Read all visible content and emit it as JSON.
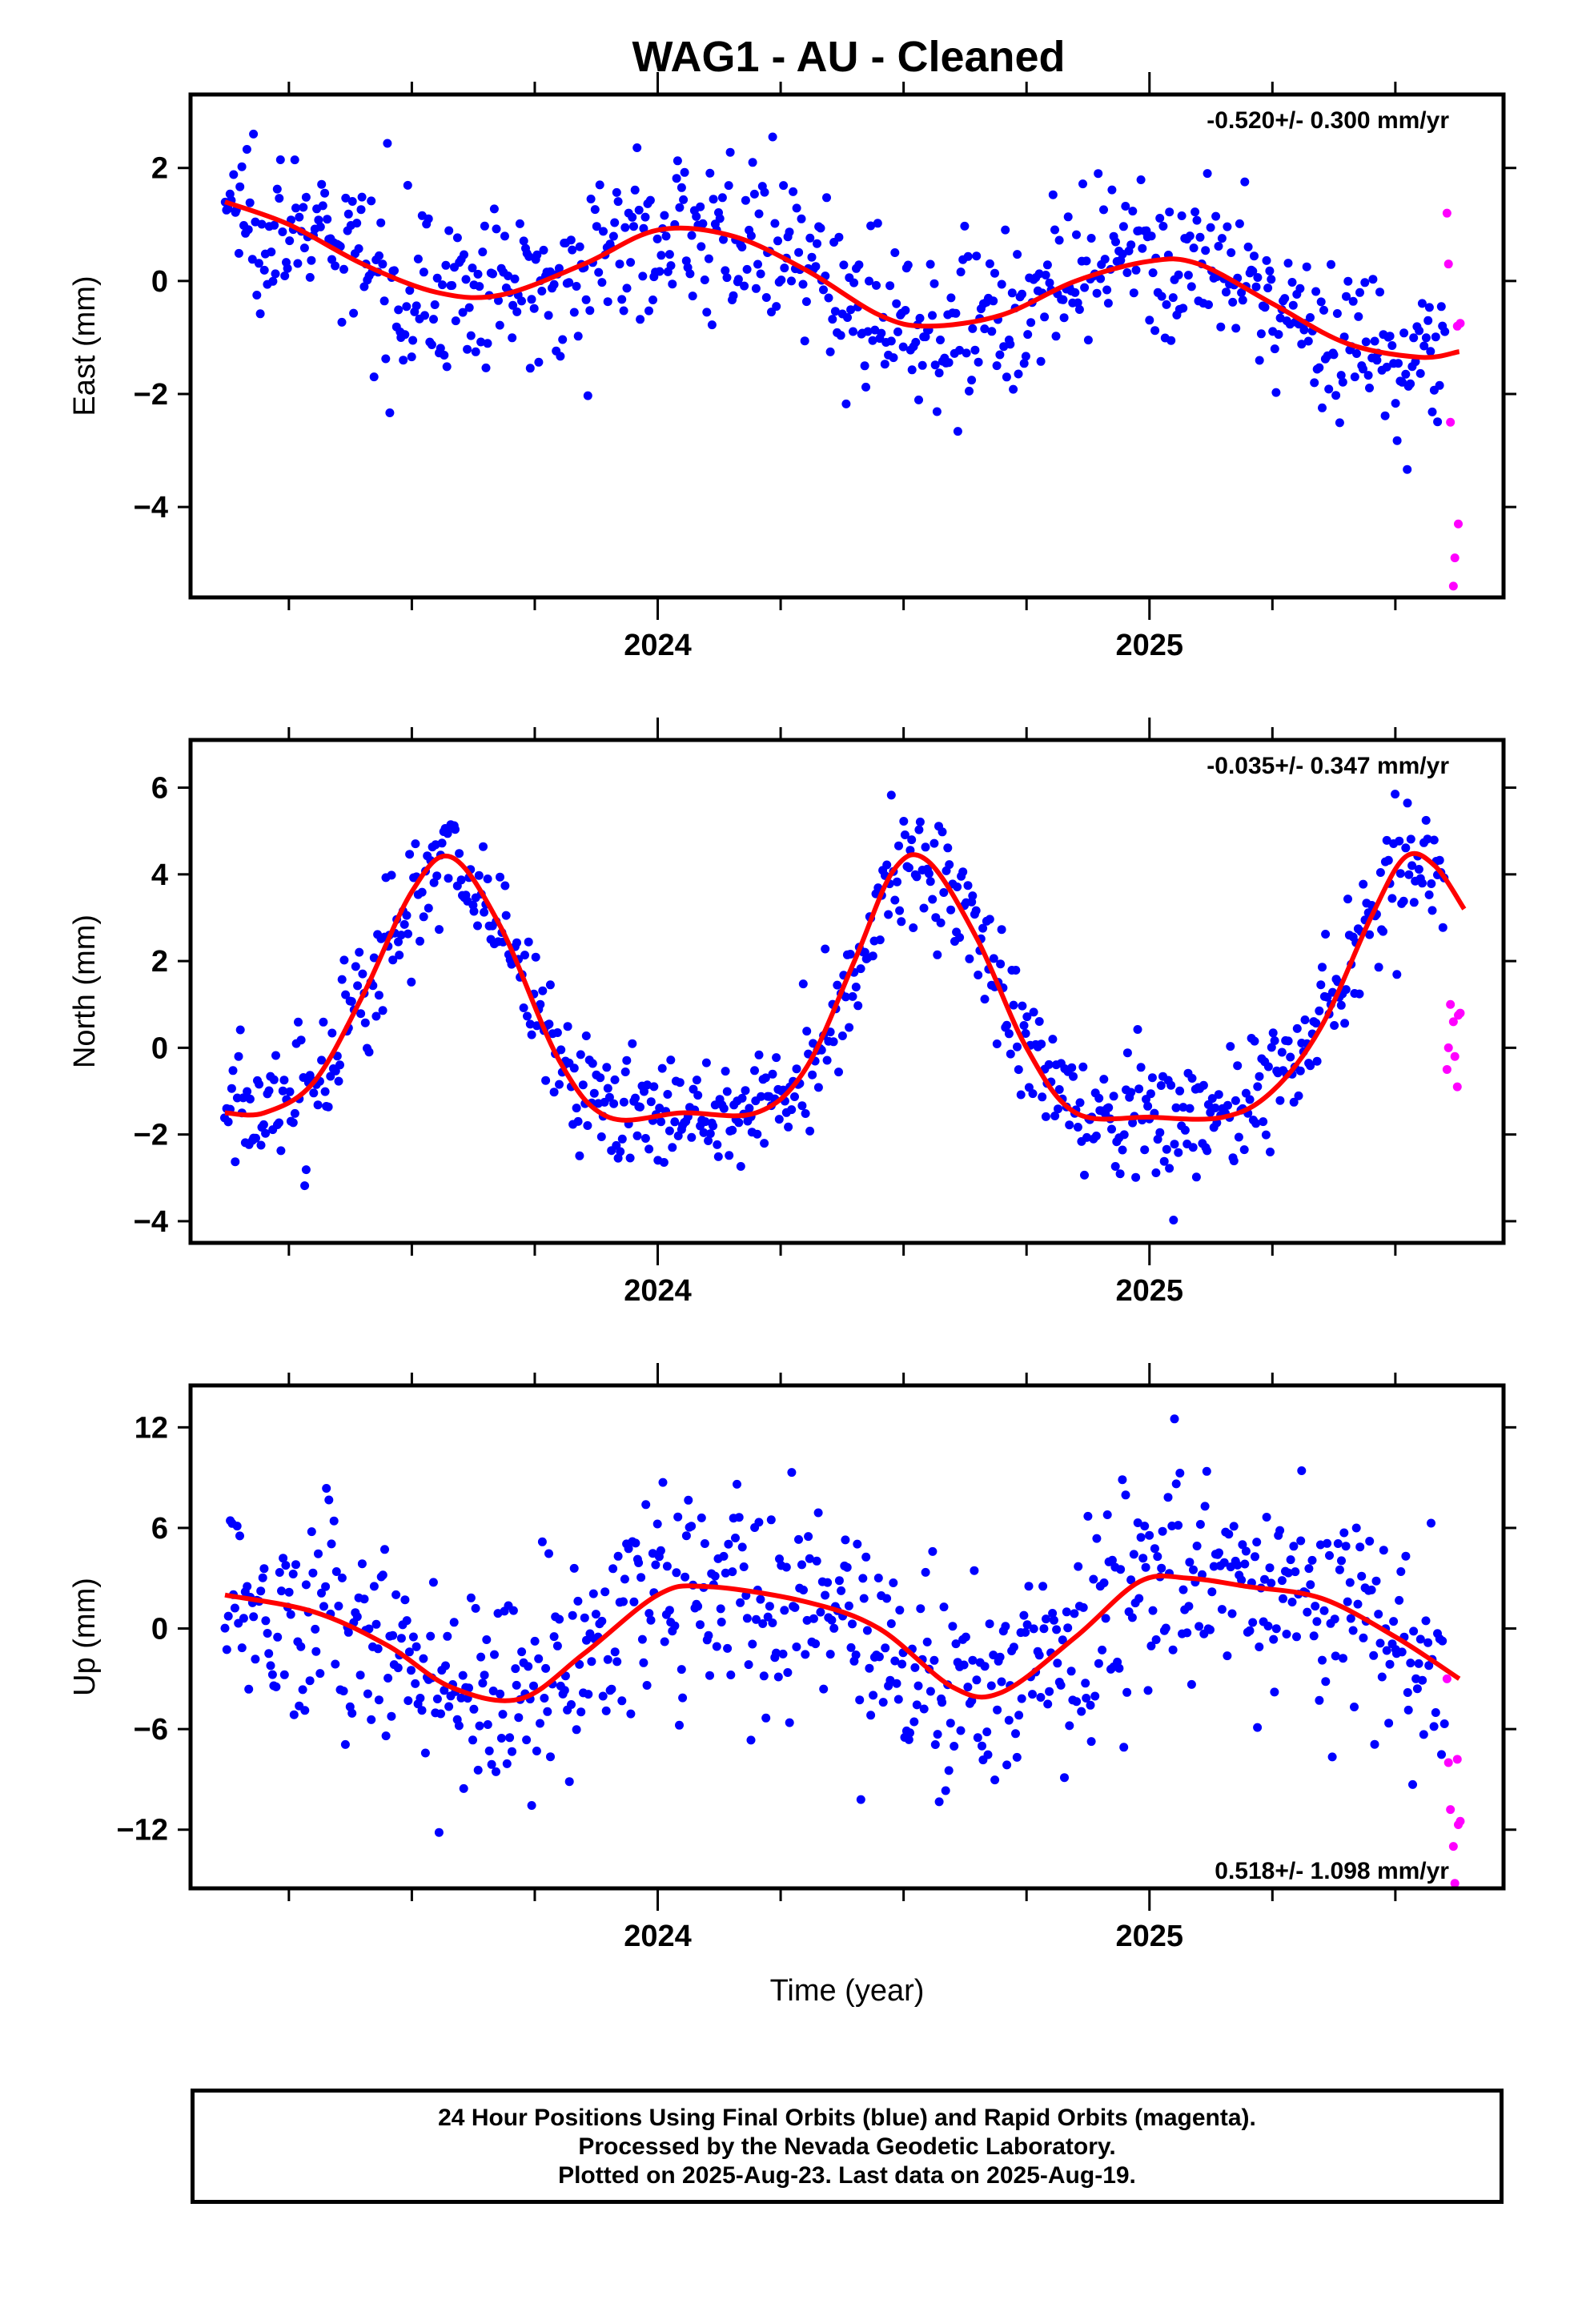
{
  "title": "WAG1  - AU - Cleaned",
  "colors": {
    "final": "#0000ff",
    "rapid": "#ff00ff",
    "model": "#ff0000"
  },
  "footer": {
    "line1": "24 Hour Positions Using Final Orbits (blue) and Rapid Orbits (magenta).",
    "line2": "Processed by the Nevada Geodetic Laboratory.",
    "line3": "Plotted on 2025-Aug-23. Last data on 2025-Aug-19."
  },
  "chart_data": [
    {
      "type": "scatter",
      "component": "east",
      "ylabel": "East (mm)",
      "xlim": [
        2023.05,
        2025.72
      ],
      "ylim": [
        -5.6,
        3.3
      ],
      "yticks": [
        -4,
        -2,
        0,
        2
      ],
      "xticks_labeled": [
        2024,
        2025
      ],
      "rate": "-0.520+/- 0.300 mm/yr",
      "rate_position": "top-right",
      "model": {
        "x": [
          2023.12,
          2023.25,
          2023.4,
          2023.55,
          2023.68,
          2023.85,
          2024.0,
          2024.15,
          2024.3,
          2024.45,
          2024.55,
          2024.7,
          2024.85,
          2025.0,
          2025.1,
          2025.25,
          2025.4,
          2025.55,
          2025.63
        ],
        "y": [
          1.4,
          1.0,
          0.3,
          -0.2,
          -0.25,
          0.3,
          0.9,
          0.8,
          0.2,
          -0.6,
          -0.8,
          -0.6,
          0.0,
          0.35,
          0.3,
          -0.4,
          -1.1,
          -1.35,
          -1.25
        ]
      },
      "final_orbits": {
        "t_start": 2023.12,
        "t_end": 2025.6,
        "count": 720,
        "annual_amplitude": 0.6,
        "annual_phase": 0.5,
        "semiannual_amplitude": 0.2,
        "noise_sd": 0.7,
        "trend": -0.52,
        "offset": 0.7
      },
      "rapid_orbits": {
        "x": [
          2025.605,
          2025.608,
          2025.612,
          2025.618,
          2025.621,
          2025.626,
          2025.628,
          2025.632
        ],
        "y": [
          1.2,
          0.3,
          -2.5,
          -5.4,
          -4.9,
          -0.8,
          -4.3,
          -0.75
        ]
      }
    },
    {
      "type": "scatter",
      "component": "north",
      "ylabel": "North (mm)",
      "xlim": [
        2023.05,
        2025.72
      ],
      "ylim": [
        -4.5,
        7.1
      ],
      "yticks": [
        -4,
        -2,
        0,
        2,
        4,
        6
      ],
      "xticks_labeled": [
        2024,
        2025
      ],
      "rate": "-0.035+/- 0.347 mm/yr",
      "rate_position": "top-right",
      "model": {
        "x": [
          2023.12,
          2023.2,
          2023.3,
          2023.4,
          2023.5,
          2023.58,
          2023.68,
          2023.8,
          2023.9,
          2024.05,
          2024.2,
          2024.3,
          2024.4,
          2024.48,
          2024.55,
          2024.65,
          2024.75,
          2024.85,
          2025.0,
          2025.15,
          2025.25,
          2025.35,
          2025.45,
          2025.52,
          2025.58,
          2025.64
        ],
        "y": [
          -1.5,
          -1.5,
          -0.8,
          1.2,
          3.6,
          4.4,
          2.8,
          -0.3,
          -1.6,
          -1.5,
          -1.5,
          -0.5,
          2.0,
          4.1,
          4.3,
          2.5,
          0.0,
          -1.5,
          -1.6,
          -1.6,
          -1.0,
          0.5,
          3.0,
          4.4,
          4.2,
          3.2
        ]
      },
      "final_orbits": {
        "t_start": 2023.12,
        "t_end": 2025.6,
        "count": 720,
        "annual_amplitude": 2.9,
        "annual_phase": 4.1,
        "semiannual_amplitude": 0.9,
        "noise_sd": 0.75,
        "trend": 0.0,
        "offset": 0.6
      },
      "rapid_orbits": {
        "x": [
          2025.605,
          2025.608,
          2025.612,
          2025.618,
          2025.621,
          2025.626,
          2025.628,
          2025.632
        ],
        "y": [
          -0.5,
          0.0,
          1.0,
          0.6,
          -0.2,
          -0.9,
          0.75,
          0.8
        ]
      }
    },
    {
      "type": "scatter",
      "component": "up",
      "ylabel": "Up (mm)",
      "xlabel": "Time (year)",
      "xlim": [
        2023.05,
        2025.72
      ],
      "ylim": [
        -15.5,
        14.5
      ],
      "yticks": [
        -12,
        -6,
        0,
        6,
        12
      ],
      "xticks_labeled": [
        2024,
        2025
      ],
      "rate": "0.518+/- 1.098 mm/yr",
      "rate_position": "bottom-right",
      "model": {
        "x": [
          2023.12,
          2023.3,
          2023.45,
          2023.58,
          2023.72,
          2023.85,
          2024.0,
          2024.1,
          2024.3,
          2024.45,
          2024.6,
          2024.7,
          2024.85,
          2024.98,
          2025.08,
          2025.2,
          2025.35,
          2025.5,
          2025.63
        ],
        "y": [
          2.0,
          1.0,
          -1.0,
          -3.5,
          -4.2,
          -1.5,
          2.0,
          2.5,
          1.6,
          0.0,
          -3.5,
          -3.8,
          -0.5,
          2.8,
          3.0,
          2.5,
          1.8,
          -0.5,
          -3.0
        ]
      },
      "final_orbits": {
        "t_start": 2023.12,
        "t_end": 2025.6,
        "count": 720,
        "annual_amplitude": 2.6,
        "annual_phase": 1.2,
        "semiannual_amplitude": 0.8,
        "noise_sd": 3.2,
        "trend": 0.5,
        "offset": -0.5
      },
      "rapid_orbits": {
        "x": [
          2025.605,
          2025.608,
          2025.612,
          2025.618,
          2025.621,
          2025.626,
          2025.628,
          2025.632
        ],
        "y": [
          -3.0,
          -8.0,
          -10.8,
          -13.0,
          -15.2,
          -7.8,
          -11.7,
          -11.5
        ]
      }
    }
  ]
}
